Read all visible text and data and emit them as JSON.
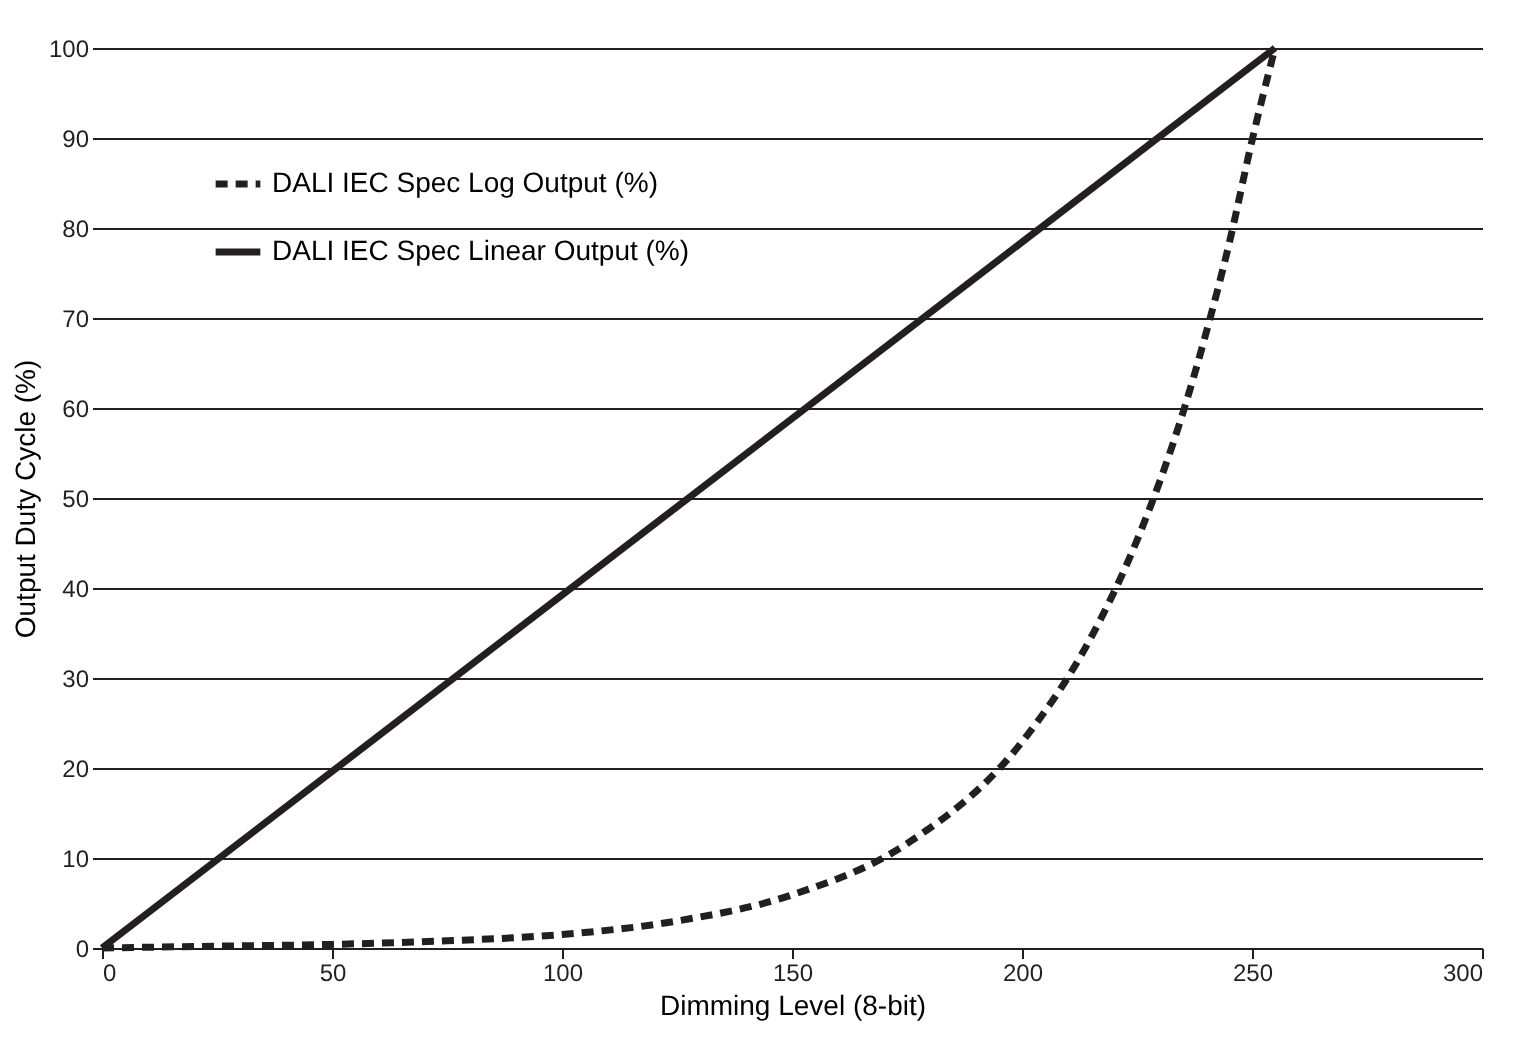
{
  "chart_data": {
    "type": "line",
    "xlabel": "Dimming Level (8-bit)",
    "ylabel": "Output Duty Cycle (%)",
    "xlim": [
      0,
      300
    ],
    "xticks": [
      0,
      50,
      100,
      150,
      200,
      250,
      300
    ],
    "ylim": [
      0,
      100
    ],
    "yticks": [
      0,
      10,
      20,
      30,
      40,
      50,
      60,
      70,
      80,
      90,
      100
    ],
    "grid": "y",
    "legend": "top left",
    "marker": "none",
    "series": [
      {
        "name": "DALI IEC Spec Log Output (%)",
        "color": "#231f20",
        "line_style": "dashed",
        "x": [
          0,
          25,
          50,
          75,
          100,
          125,
          150,
          175,
          200,
          215,
          225,
          235,
          240,
          245,
          250,
          255
        ],
        "values": [
          0,
          0.2,
          0.4,
          0.8,
          1.5,
          3,
          5.9,
          11.6,
          22.9,
          34.5,
          45.3,
          59.5,
          68.3,
          78.2,
          89.7,
          100
        ]
      },
      {
        "name": "DALI IEC Spec Linear Output (%)",
        "color": "#231f20",
        "line_style": "solid",
        "x": [
          0,
          255
        ],
        "values": [
          0,
          100
        ]
      }
    ]
  }
}
